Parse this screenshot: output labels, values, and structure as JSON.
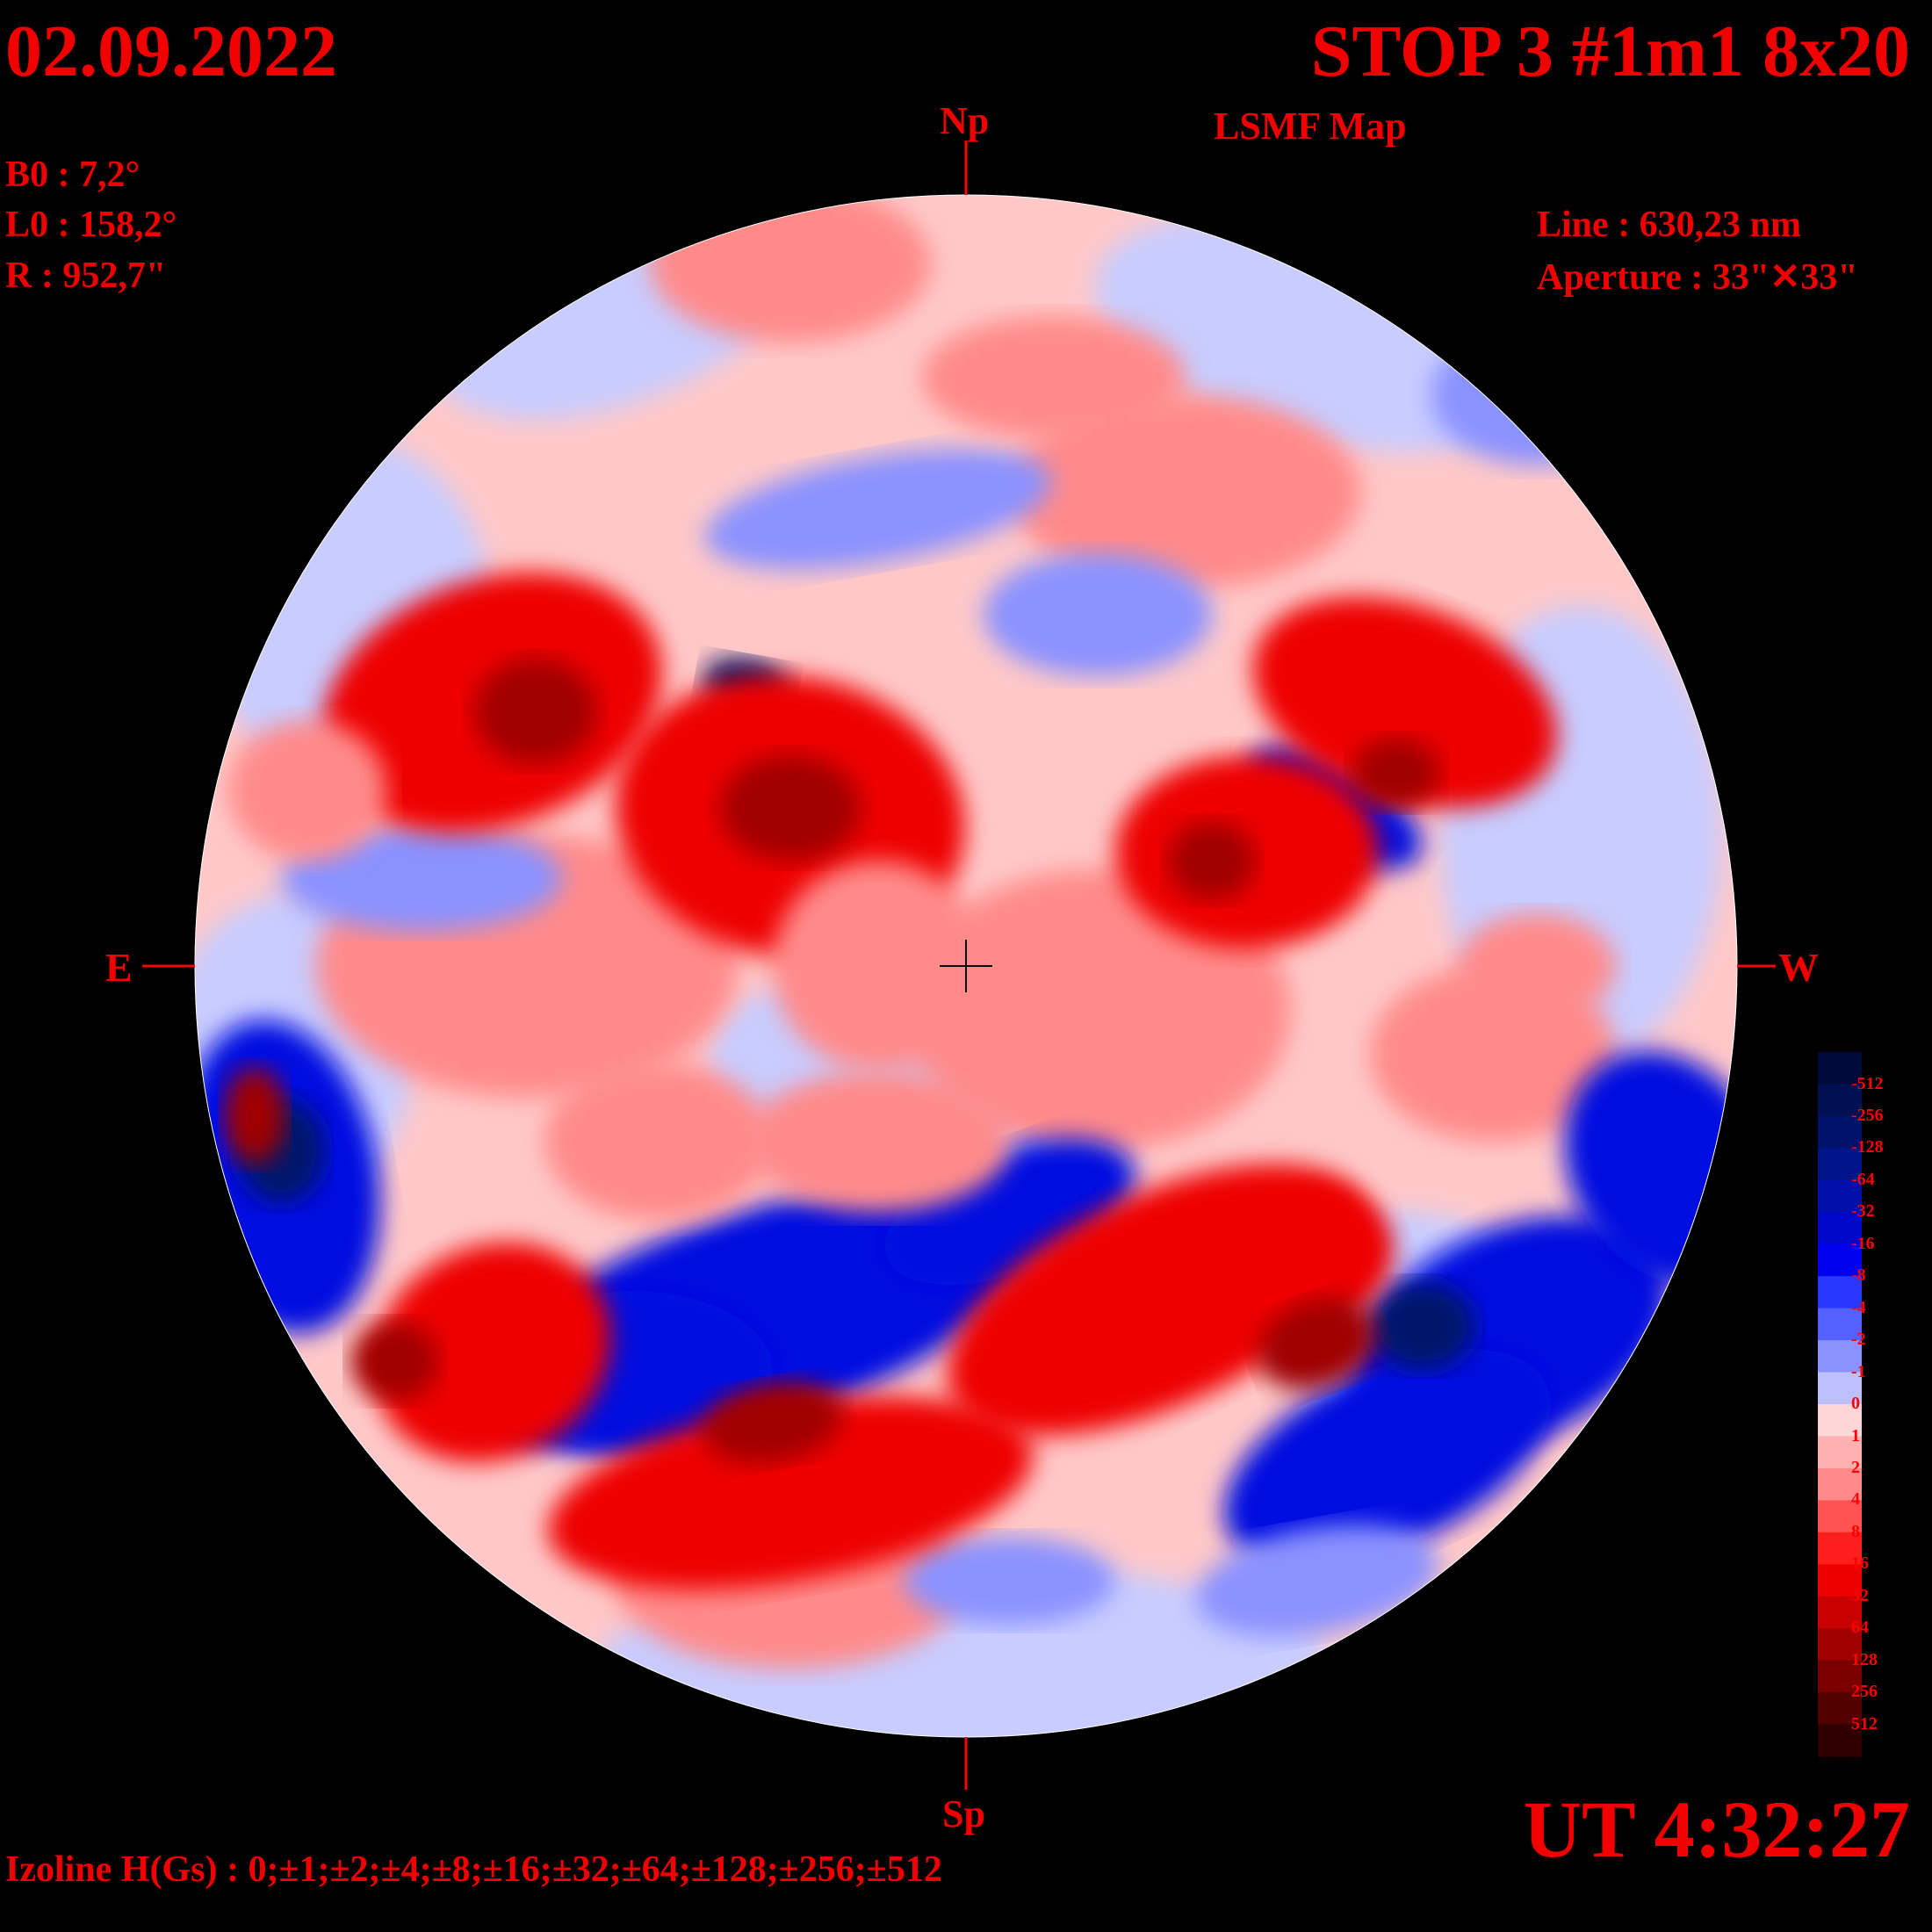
{
  "header": {
    "date": "02.09.2022",
    "title": "STOP 3 #1m1 8x20",
    "subtitle": "LSMF  Map"
  },
  "params": {
    "b0": "B0 : 7,2°",
    "l0": "L0 : 158,2°",
    "r": "R  : 952,7\"",
    "line": "Line :  630,23 nm",
    "aperture": "Aperture : 33\"✕33\""
  },
  "directions": {
    "north": "Np",
    "south": "Sp",
    "east": "E",
    "west": "W"
  },
  "time": "UT 4:32:27",
  "izoline": "Izoline H(Gs) : 0;±1;±2;±4;±8;±16;±32;±64;±128;±256;±512",
  "colorbar": {
    "labels": [
      "-512",
      "-256",
      "-128",
      "-64",
      "-32",
      "-16",
      "-8",
      "-4",
      "-2",
      "-1",
      "0",
      "1",
      "2",
      "4",
      "8",
      "16",
      "32",
      "64",
      "128",
      "256",
      "512"
    ],
    "colors": [
      "#000a3a",
      "#001050",
      "#00126a",
      "#001488",
      "#0010a8",
      "#0008c8",
      "#0000ee",
      "#2a38ff",
      "#5460ff",
      "#8a92ff",
      "#bcc0ff",
      "#ffd6d6",
      "#ffb0b0",
      "#ff8a8a",
      "#ff5252",
      "#ff1e1e",
      "#ee0000",
      "#c80000",
      "#a00000",
      "#7a0000",
      "#520000",
      "#300000"
    ]
  },
  "palette": {
    "deep_red": "#a00000",
    "red": "#ee0000",
    "light_red": "#ff8a8a",
    "pale_red": "#ffd6d6",
    "pale_blue": "#c8ccff",
    "light_blue": "#8a92ff",
    "blue": "#0008e0",
    "deep_blue": "#00126a",
    "text": "#f20000"
  }
}
